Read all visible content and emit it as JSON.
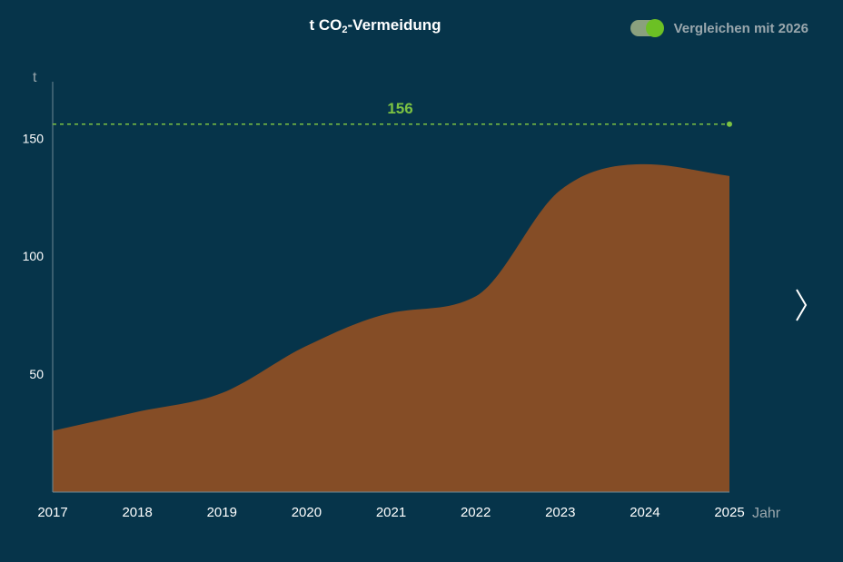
{
  "header": {
    "title_prefix": "t CO",
    "title_sub": "2",
    "title_suffix": "-Vermeidung",
    "toggle_label": "Vergleichen mit 2026",
    "toggle_on": true
  },
  "navigation": {
    "next_icon": "chevron-right-icon"
  },
  "colors": {
    "background": "#06344a",
    "area": "#854d26",
    "target": "#7cc242",
    "axis": "#6e8794",
    "tick_text": "#ffffff",
    "unit_text": "#9aa7ad"
  },
  "chart_data": {
    "type": "area",
    "x": [
      "2017",
      "2018",
      "2019",
      "2020",
      "2021",
      "2022",
      "2023",
      "2024",
      "2025"
    ],
    "values": [
      26,
      34,
      42,
      62,
      76,
      83,
      128,
      139,
      134
    ],
    "ylabel": "t",
    "xlabel": "Jahr",
    "ylim": [
      0,
      174
    ],
    "yticks": [
      50,
      100,
      150
    ],
    "target": {
      "value": 156,
      "label": "156"
    },
    "grid": false
  }
}
